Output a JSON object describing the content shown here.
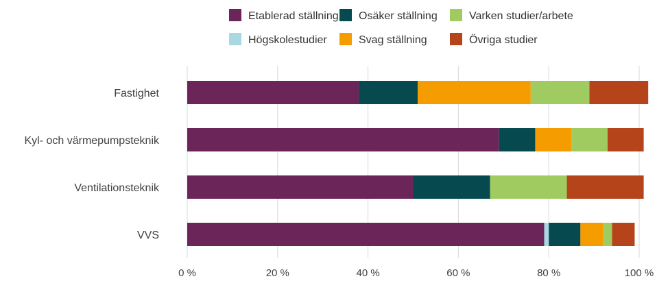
{
  "chart_data": {
    "type": "bar",
    "orientation": "horizontal",
    "stacked": true,
    "categories": [
      "Fastighet",
      "Kyl- och värmepumpsteknik",
      "Ventilationsteknik",
      "VVS"
    ],
    "series": [
      {
        "name": "Etablerad ställning",
        "color": "#6b2559",
        "values": [
          38,
          69,
          50,
          79
        ]
      },
      {
        "name": "Högskolestudier",
        "color": "#a8d8e2",
        "values": [
          0,
          0,
          0,
          1
        ]
      },
      {
        "name": "Osäker ställning",
        "color": "#064a4f",
        "values": [
          13,
          8,
          17,
          7
        ]
      },
      {
        "name": "Svag ställning",
        "color": "#f59c00",
        "values": [
          25,
          8,
          0,
          5
        ]
      },
      {
        "name": "Varken studier/arbete",
        "color": "#9fcb60",
        "values": [
          13,
          8,
          17,
          2
        ]
      },
      {
        "name": "Övriga studier",
        "color": "#b5441a",
        "values": [
          13,
          8,
          17,
          5
        ]
      }
    ],
    "legend_order": [
      "Etablerad ställning",
      "Osäker ställning",
      "Varken studier/arbete",
      "Högskolestudier",
      "Svag ställning",
      "Övriga studier"
    ],
    "xlim": [
      0,
      100
    ],
    "xticks": [
      0,
      20,
      40,
      60,
      80,
      100
    ],
    "tick_suffix": " %",
    "grid": true,
    "legend_position": "top"
  }
}
